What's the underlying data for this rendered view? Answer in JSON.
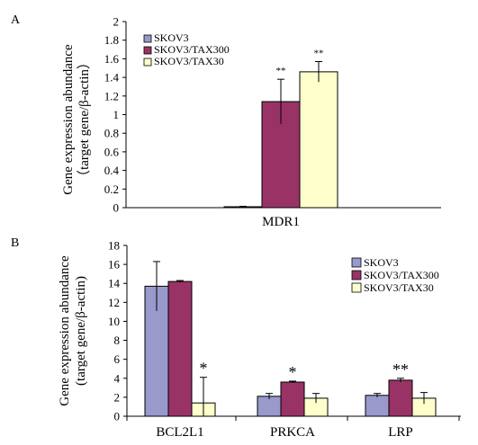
{
  "chart_data": [
    {
      "type": "bar",
      "panel_label": "A",
      "categories": [
        "MDR1"
      ],
      "series": [
        {
          "name": "SKOV3",
          "values": [
            0.01
          ],
          "errors": [
            0.005
          ],
          "color": "#9999cc"
        },
        {
          "name": "SKOV3/TAX300",
          "values": [
            1.14
          ],
          "errors": [
            0.24
          ],
          "color": "#993366"
        },
        {
          "name": "SKOV3/TAX30",
          "values": [
            1.46
          ],
          "errors": [
            0.11
          ],
          "color": "#ffffcc"
        }
      ],
      "annotations": [
        {
          "category": "MDR1",
          "series": "SKOV3/TAX300",
          "text": "**"
        },
        {
          "category": "MDR1",
          "series": "SKOV3/TAX30",
          "text": "**"
        }
      ],
      "ylabel_line1": "Gene expression abundance",
      "ylabel_line2": "（target gene/β-actin）",
      "yticks": [
        "0",
        "0.2",
        "0.4",
        "0.6",
        "0.8",
        "1",
        "1.2",
        "1.4",
        "1.6",
        "1.8",
        "2"
      ],
      "ylim": [
        0,
        2
      ],
      "legend_position": "top-left",
      "grid": false
    },
    {
      "type": "bar",
      "panel_label": "B",
      "categories": [
        "BCL2L1",
        "PRKCA",
        "LRP"
      ],
      "series": [
        {
          "name": "SKOV3",
          "values": [
            13.7,
            2.1,
            2.2
          ],
          "errors": [
            2.6,
            0.3,
            0.2
          ],
          "color": "#9999cc"
        },
        {
          "name": "SKOV3/TAX300",
          "values": [
            14.2,
            3.6,
            3.8
          ],
          "errors": [
            0.1,
            0.1,
            0.2
          ],
          "color": "#993366"
        },
        {
          "name": "SKOV3/TAX30",
          "values": [
            1.4,
            1.9,
            1.9
          ],
          "errors": [
            2.7,
            0.5,
            0.6
          ],
          "color": "#ffffcc"
        }
      ],
      "annotations": [
        {
          "category": "BCL2L1",
          "series": "SKOV3/TAX30",
          "text": "*"
        },
        {
          "category": "PRKCA",
          "series": "SKOV3/TAX300",
          "text": "*"
        },
        {
          "category": "LRP",
          "series": "SKOV3/TAX300",
          "text": "**"
        }
      ],
      "ylabel_line1": "Gene expression abundance",
      "ylabel_line2": "(target gene/β-actin)",
      "yticks": [
        "0",
        "2",
        "4",
        "6",
        "8",
        "10",
        "12",
        "14",
        "16",
        "18"
      ],
      "ylim": [
        0,
        18
      ],
      "legend_position": "top-right",
      "grid": false
    }
  ]
}
